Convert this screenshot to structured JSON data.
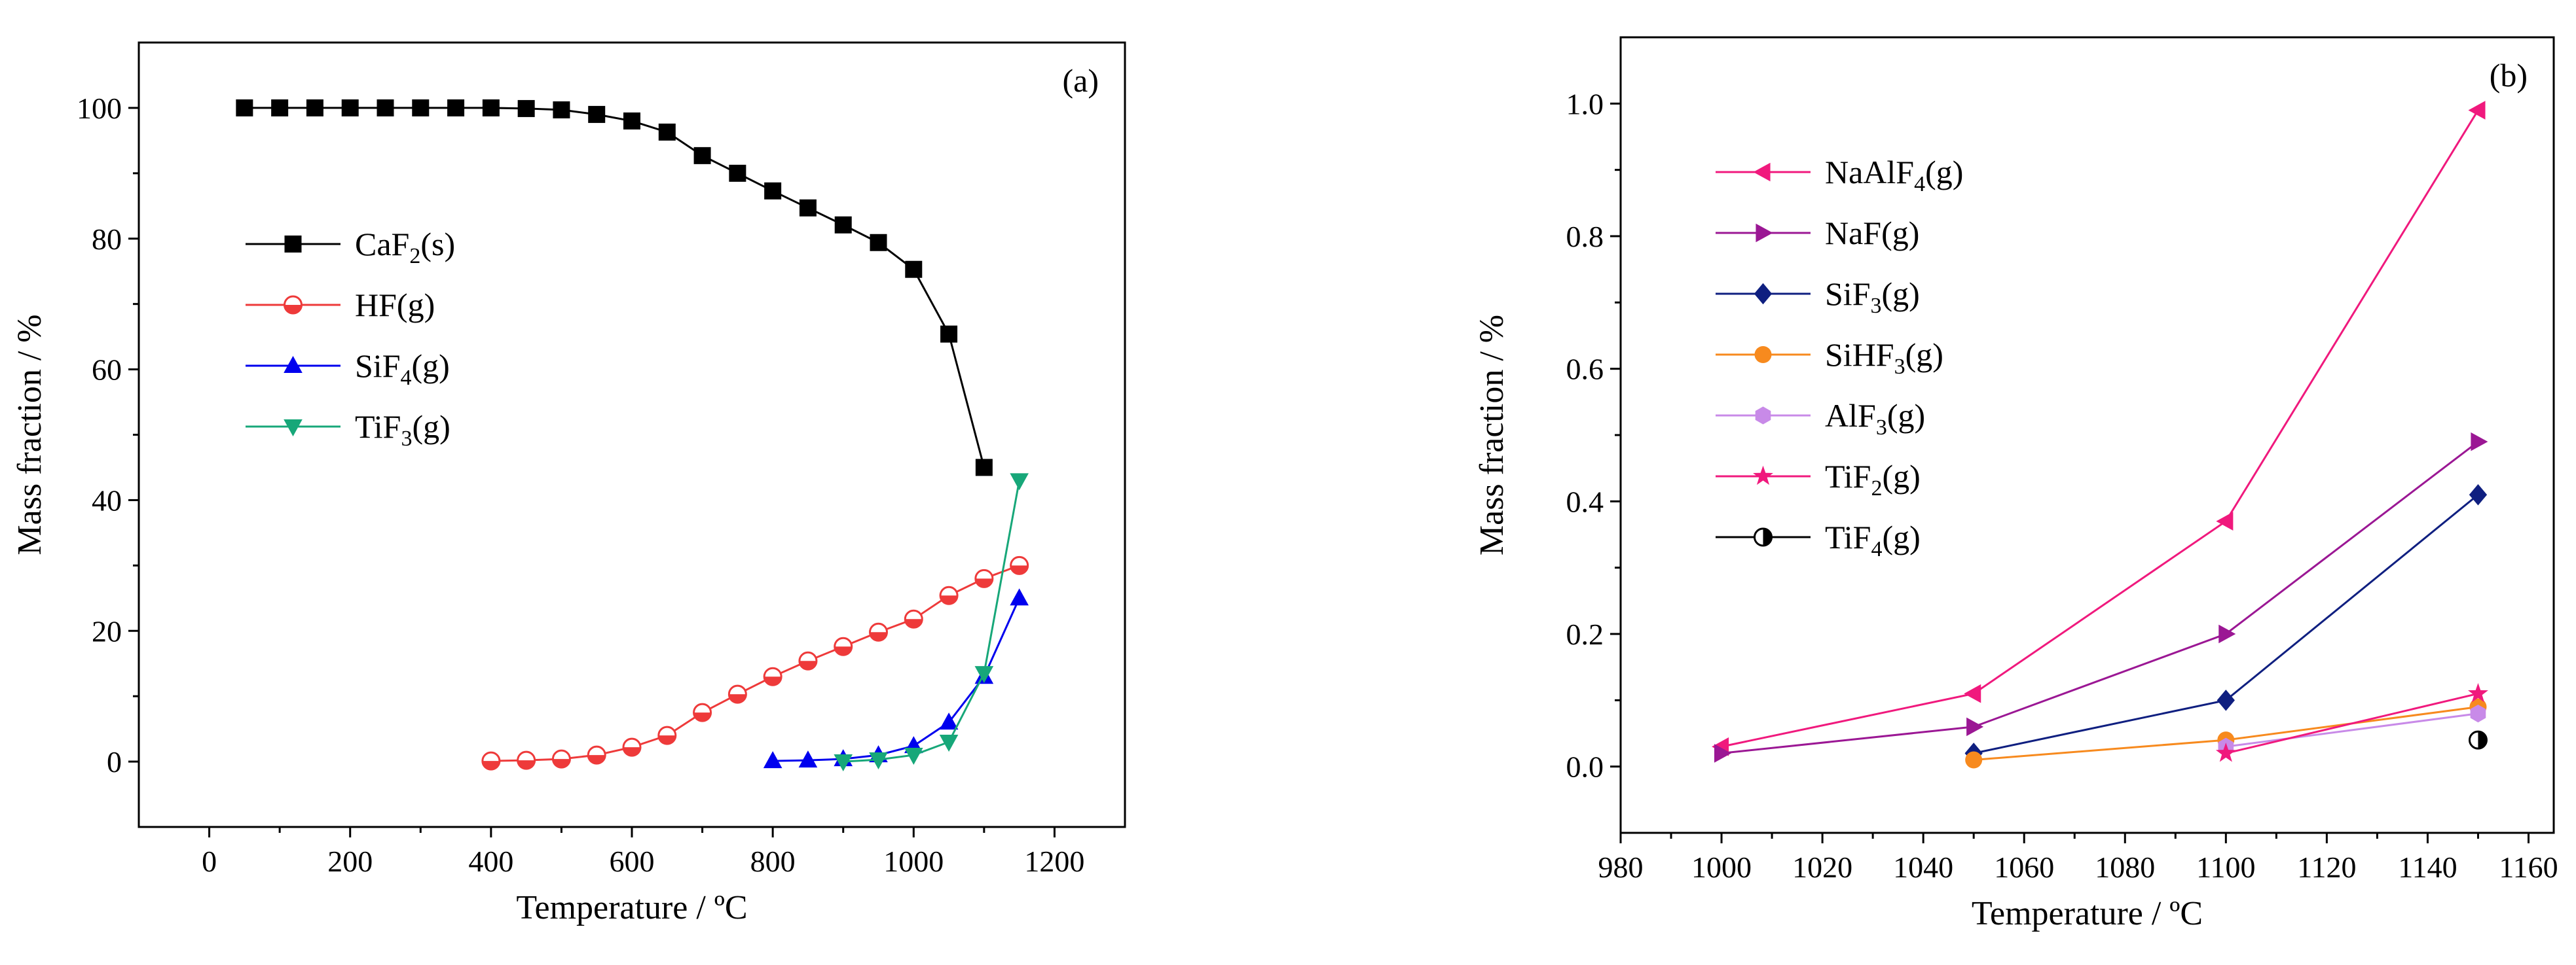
{
  "figure": {
    "background": "#ffffff"
  },
  "chart_data": [
    {
      "type": "line",
      "panel_label": "(a)",
      "xlabel": "Temperature / ºC",
      "ylabel": "Mass fraction / %",
      "xlim": [
        -100,
        1300
      ],
      "ylim": [
        -10,
        110
      ],
      "xticks": [
        0,
        200,
        400,
        600,
        800,
        1000,
        1200
      ],
      "yticks": [
        0,
        20,
        40,
        60,
        80,
        100
      ],
      "xtick_labels": [
        "0",
        "200",
        "400",
        "600",
        "800",
        "1000",
        "1200"
      ],
      "ytick_labels": [
        "0",
        "20",
        "40",
        "60",
        "80",
        "100"
      ],
      "grid": false,
      "legend_location": "center-left",
      "series": [
        {
          "name": "CaF2(s)",
          "label_main": "CaF",
          "label_sub": "2",
          "label_tail": "(s)",
          "color": "#000000",
          "marker": "square",
          "filled": true,
          "x": [
            50,
            100,
            150,
            200,
            250,
            300,
            350,
            400,
            450,
            500,
            550,
            600,
            650,
            700,
            750,
            800,
            850,
            900,
            950,
            1000,
            1050,
            1100
          ],
          "y": [
            100,
            100,
            100,
            100,
            100,
            100,
            100,
            100,
            99.9,
            99.7,
            99,
            98,
            96.3,
            92.7,
            90,
            87.3,
            84.7,
            82.1,
            79.4,
            75.3,
            65.4,
            45
          ]
        },
        {
          "name": "HF(g)",
          "label_main": "HF",
          "label_sub": "",
          "label_tail": "(g)",
          "color": "#ee3a3a",
          "marker": "halfcircle",
          "filled": false,
          "x": [
            400,
            450,
            500,
            550,
            600,
            650,
            700,
            750,
            800,
            850,
            900,
            950,
            1000,
            1050,
            1100,
            1150
          ],
          "y": [
            0.1,
            0.2,
            0.4,
            1,
            2.2,
            4,
            7.5,
            10.3,
            13,
            15.4,
            17.6,
            19.8,
            21.8,
            25.4,
            28,
            30
          ]
        },
        {
          "name": "SiF4(g)",
          "label_main": "SiF",
          "label_sub": "4",
          "label_tail": "(g)",
          "color": "#0000ee",
          "marker": "triangle-up",
          "filled": true,
          "x": [
            800,
            850,
            900,
            950,
            1000,
            1050,
            1100,
            1150
          ],
          "y": [
            0.1,
            0.2,
            0.4,
            1,
            2.4,
            6,
            13,
            25
          ]
        },
        {
          "name": "TiF3(g)",
          "label_main": "TiF",
          "label_sub": "3",
          "label_tail": "(g)",
          "color": "#17a779",
          "marker": "triangle-down",
          "filled": true,
          "x": [
            900,
            950,
            1000,
            1050,
            1100,
            1150
          ],
          "y": [
            0,
            0.3,
            1,
            3,
            13.5,
            43
          ]
        }
      ]
    },
    {
      "type": "line",
      "panel_label": "(b)",
      "xlabel": "Temperature / ºC",
      "ylabel": "Mass fraction / %",
      "xlim": [
        980,
        1165
      ],
      "ylim": [
        -0.1,
        1.1
      ],
      "xticks": [
        980,
        1000,
        1020,
        1040,
        1060,
        1080,
        1100,
        1120,
        1140,
        1160
      ],
      "yticks": [
        0,
        0.2,
        0.4,
        0.6,
        0.8,
        1.0
      ],
      "xtick_labels": [
        "980",
        "1000",
        "1020",
        "1040",
        "1060",
        "1080",
        "1100",
        "1120",
        "1140",
        "1160"
      ],
      "ytick_labels": [
        "0.0",
        "0.2",
        "0.4",
        "0.6",
        "0.8",
        "1.0"
      ],
      "grid": false,
      "legend_location": "top-left",
      "series": [
        {
          "name": "NaAlF4(g)",
          "label_main": "NaAlF",
          "label_sub": "4",
          "label_tail": "(g)",
          "color": "#f0197d",
          "marker": "triangle-left",
          "filled": true,
          "x": [
            1000,
            1050,
            1100,
            1150
          ],
          "y": [
            0.03,
            0.11,
            0.37,
            0.99
          ]
        },
        {
          "name": "NaF(g)",
          "label_main": "NaF",
          "label_sub": "",
          "label_tail": "(g)",
          "color": "#9b1794",
          "marker": "triangle-right",
          "filled": true,
          "x": [
            1000,
            1050,
            1100,
            1150
          ],
          "y": [
            0.02,
            0.06,
            0.2,
            0.49
          ]
        },
        {
          "name": "SiF3(g)",
          "label_main": "SiF",
          "label_sub": "3",
          "label_tail": "(g)",
          "color": "#0f1f80",
          "marker": "diamond",
          "filled": true,
          "x": [
            1050,
            1100,
            1150
          ],
          "y": [
            0.02,
            0.1,
            0.41
          ]
        },
        {
          "name": "SiHF3(g)",
          "label_main": "SiHF",
          "label_sub": "3",
          "label_tail": "(g)",
          "color": "#f78a1e",
          "marker": "circle",
          "filled": true,
          "x": [
            1050,
            1100,
            1150
          ],
          "y": [
            0.01,
            0.04,
            0.09
          ]
        },
        {
          "name": "AlF3(g)",
          "label_main": "AlF",
          "label_sub": "3",
          "label_tail": "(g)",
          "color": "#c88ae8",
          "marker": "hexagon",
          "filled": true,
          "x": [
            1100,
            1150
          ],
          "y": [
            0.03,
            0.08
          ]
        },
        {
          "name": "TiF2(g)",
          "label_main": "TiF",
          "label_sub": "2",
          "label_tail": "(g)",
          "color": "#f0197d",
          "marker": "star",
          "filled": true,
          "x": [
            1100,
            1150
          ],
          "y": [
            0.02,
            0.11
          ]
        },
        {
          "name": "TiF4(g)",
          "label_main": "TiF",
          "label_sub": "4",
          "label_tail": "(g)",
          "color": "#000000",
          "marker": "halfcircle-left",
          "filled": false,
          "x": [
            1150
          ],
          "y": [
            0.04
          ]
        }
      ]
    }
  ]
}
